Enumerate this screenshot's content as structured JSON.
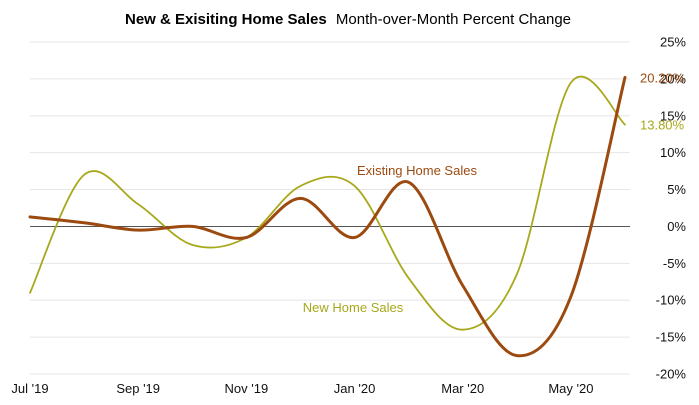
{
  "chart_data": {
    "type": "line",
    "title_bold": "New & Exisiting Home Sales",
    "title_regular": "Month-over-Month  Percent Change",
    "x": [
      "Jul '19",
      "Aug '19",
      "Sep '19",
      "Oct '19",
      "Nov '19",
      "Dec '19",
      "Jan '20",
      "Feb '20",
      "Mar '20",
      "Apr '20",
      "May '20",
      "Jun '20"
    ],
    "x_tick_labels": [
      "Jul '19",
      "Sep '19",
      "Nov '19",
      "Jan '20",
      "Mar '20",
      "May '20"
    ],
    "y_tick_labels": [
      "25%",
      "20%",
      "15%",
      "10%",
      "5%",
      "0%",
      "-5%",
      "-10%",
      "-15%",
      "-20%"
    ],
    "ylim": [
      -20,
      25
    ],
    "y_axis_position": "right",
    "grid": true,
    "series": [
      {
        "name": "New Home Sales",
        "color": "#a8a81c",
        "points": [
          [
            "Jul '19",
            -9.0
          ],
          [
            "Aug '19",
            7.0
          ],
          [
            "Sep '19",
            3.0
          ],
          [
            "Oct '19",
            -2.5
          ],
          [
            "Nov '19",
            -1.5
          ],
          [
            "Dec '19",
            5.5
          ],
          [
            "Jan '20",
            5.5
          ],
          [
            "Feb '20",
            -7.0
          ],
          [
            "Mar '20",
            -14.0
          ],
          [
            "Apr '20",
            -6.5
          ],
          [
            "May '20",
            19.5
          ],
          [
            "Jun '20",
            13.8
          ]
        ],
        "end_label": "13.80%"
      },
      {
        "name": "Existing Home Sales",
        "color": "#9c4a10",
        "points": [
          [
            "Jul '19",
            1.3
          ],
          [
            "Aug '19",
            0.5
          ],
          [
            "Sep '19",
            -0.5
          ],
          [
            "Oct '19",
            0.0
          ],
          [
            "Nov '19",
            -1.5
          ],
          [
            "Dec '19",
            3.8
          ],
          [
            "Jan '20",
            -1.5
          ],
          [
            "Feb '20",
            6.0
          ],
          [
            "Mar '20",
            -8.0
          ],
          [
            "Apr '20",
            -17.5
          ],
          [
            "May '20",
            -9.5
          ],
          [
            "Jun '20",
            20.2
          ]
        ],
        "end_label": "20.20%"
      }
    ]
  }
}
